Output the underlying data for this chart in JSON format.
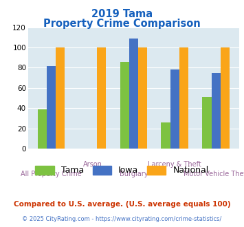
{
  "title_line1": "2019 Tama",
  "title_line2": "Property Crime Comparison",
  "categories": [
    "All Property Crime",
    "Arson",
    "Burglary",
    "Larceny & Theft",
    "Motor Vehicle Theft"
  ],
  "tama": [
    39,
    0,
    86,
    26,
    51
  ],
  "iowa": [
    82,
    0,
    109,
    78,
    75
  ],
  "national": [
    100,
    100,
    100,
    100,
    100
  ],
  "bar_width": 0.22,
  "ylim": [
    0,
    120
  ],
  "yticks": [
    0,
    20,
    40,
    60,
    80,
    100,
    120
  ],
  "color_tama": "#7dc241",
  "color_iowa": "#4472c4",
  "color_national": "#faa519",
  "background_color": "#dce9f0",
  "title_color": "#1560bd",
  "xlabel_color": "#996699",
  "legend_label_tama": "Tama",
  "legend_label_iowa": "Iowa",
  "legend_label_national": "National",
  "footnote1": "Compared to U.S. average. (U.S. average equals 100)",
  "footnote2": "© 2025 CityRating.com - https://www.cityrating.com/crime-statistics/",
  "footnote1_color": "#cc3300",
  "footnote2_color": "#4472c4",
  "x_label_top": [
    "",
    "Arson",
    "",
    "Larceny & Theft",
    ""
  ],
  "x_label_bottom": [
    "All Property Crime",
    "",
    "Burglary",
    "",
    "Motor Vehicle Theft"
  ]
}
